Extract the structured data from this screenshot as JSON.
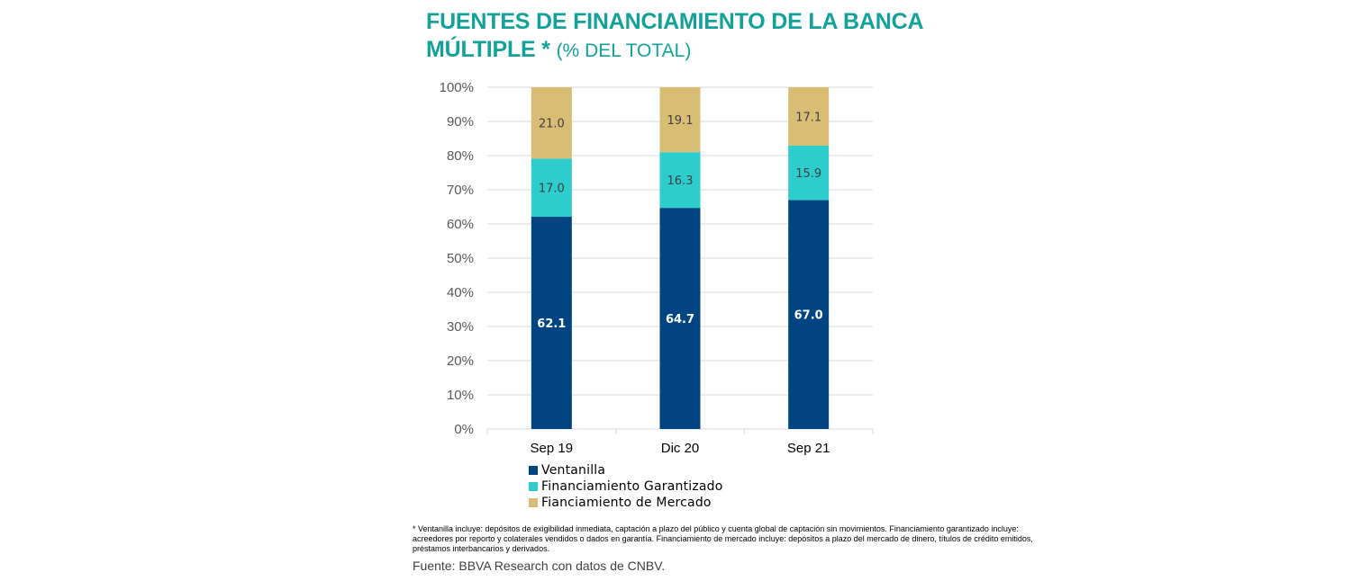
{
  "chart_data": {
    "type": "bar",
    "stacked": true,
    "title_line1": "FUENTES DE FINANCIAMIENTO DE LA BANCA",
    "title_line2": "MÚLTIPLE *",
    "title_suffix": "(% DEL TOTAL)",
    "categories": [
      "Sep 19",
      "Dic 20",
      "Sep 21"
    ],
    "series": [
      {
        "name": "Ventanilla",
        "values": [
          62.1,
          64.7,
          67.0
        ],
        "labels": [
          "62.1",
          "64.7",
          "67.0"
        ],
        "color": "#004481",
        "label_color": "#FFFFFF",
        "label_bold": true
      },
      {
        "name": "Financiamiento Garantizado",
        "values": [
          17.0,
          16.3,
          15.9
        ],
        "labels": [
          "17.0",
          "16.3",
          "15.9"
        ],
        "color": "#2DCCCD",
        "label_color": "#404040",
        "label_bold": false
      },
      {
        "name": "Fianciamiento de Mercado",
        "values": [
          21.0,
          19.1,
          17.1
        ],
        "labels": [
          "21.0",
          "19.1",
          "17.1"
        ],
        "color": "#D8BE75",
        "label_color": "#404040",
        "label_bold": false
      }
    ],
    "ylim": [
      0,
      100
    ],
    "yticks": [
      0,
      10,
      20,
      30,
      40,
      50,
      60,
      70,
      80,
      90,
      100
    ],
    "ytick_labels": [
      "0%",
      "10%",
      "20%",
      "30%",
      "40%",
      "50%",
      "60%",
      "70%",
      "80%",
      "90%",
      "100%"
    ],
    "xlabel": "",
    "ylabel": "",
    "grid": true,
    "legend_position": "bottom"
  },
  "footnote": "* Ventanilla incluye: depósitos de exigibilidad inmediata, captación a plazo del público y cuenta global de captación sin movimientos. Financiamiento garantizado incluye: acreedores por reporto y colaterales vendidos o dados en garantía. Financiamiento de mercado incluye: depósitos a plazo del mercado de dinero, títulos de crédito emitidos, préstamos interbancarios y derivados.",
  "source": "Fuente: BBVA Research con datos de CNBV."
}
